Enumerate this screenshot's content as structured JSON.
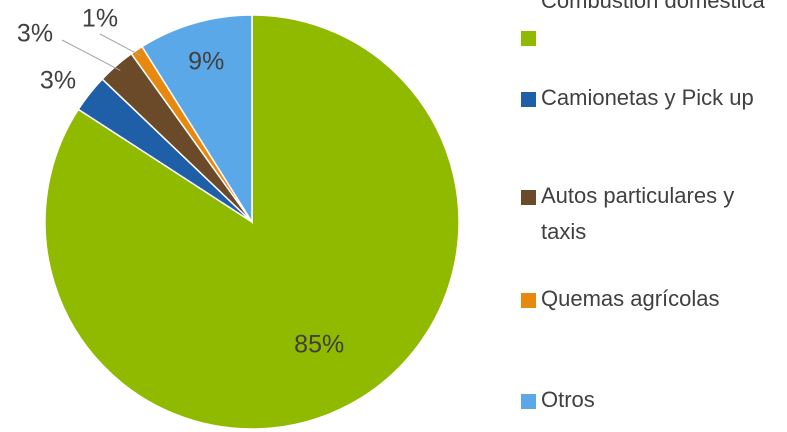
{
  "chart_data": {
    "type": "pie",
    "categories": [
      "Combustión doméstica",
      "Camionetas y Pick up",
      "Autos particulares y taxis",
      "Quemas agrícolas",
      "Otros"
    ],
    "values": [
      85,
      3,
      3,
      1,
      9
    ],
    "value_labels": [
      "85%",
      "3%",
      "3%",
      "1%",
      "9%"
    ],
    "colors": [
      "#8fba00",
      "#1f5fa8",
      "#6b4a2a",
      "#e8890f",
      "#5ba8e8"
    ],
    "legend": "right"
  }
}
